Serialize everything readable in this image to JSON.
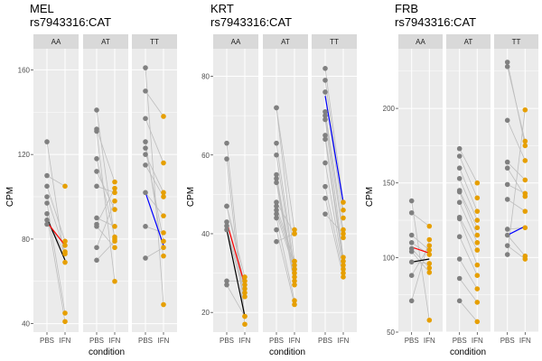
{
  "chart_data": [
    {
      "type": "line",
      "title": "MEL",
      "subtitle": "rs7943316:CAT",
      "xlabel": "condition",
      "ylabel": "CPM",
      "facets": [
        "AA",
        "AT",
        "TT"
      ],
      "x_categories": [
        "PBS",
        "IFN"
      ],
      "ylim": [
        36,
        170
      ],
      "yticks": [
        40,
        80,
        120,
        160
      ],
      "point_colors": {
        "PBS": "#808080",
        "IFN": "#E69F00"
      },
      "line_color": "#BEBEBE",
      "panels": [
        {
          "genotype": "AA",
          "pairs": [
            [
              126,
              69
            ],
            [
              110,
              105
            ],
            [
              105,
              79
            ],
            [
              100,
              74
            ],
            [
              97,
              45
            ],
            [
              92,
              41
            ],
            [
              89,
              73
            ],
            [
              87,
              77
            ]
          ],
          "mean_line": {
            "PBS": 90,
            "IFN": 70,
            "color": "#000000"
          },
          "highlight_line": {
            "PBS": 88,
            "IFN": 77,
            "color": "#FF0000"
          }
        },
        {
          "genotype": "AT",
          "pairs": [
            [
              141,
              80
            ],
            [
              132,
              107
            ],
            [
              131,
              60
            ],
            [
              118,
              81
            ],
            [
              112,
              94
            ],
            [
              105,
              102
            ],
            [
              90,
              86
            ],
            [
              87,
              104
            ],
            [
              86,
              76
            ],
            [
              76,
              98
            ],
            [
              70,
              79
            ]
          ],
          "mean_line": null,
          "highlight_line": null
        },
        {
          "genotype": "TT",
          "pairs": [
            [
              161,
              49
            ],
            [
              150,
              138
            ],
            [
              137,
              116
            ],
            [
              126,
              72
            ],
            [
              123,
              79
            ],
            [
              120,
              102
            ],
            [
              115,
              100
            ],
            [
              102,
              91
            ],
            [
              86,
              83
            ],
            [
              71,
              76
            ]
          ],
          "mean_line": null,
          "highlight_line": {
            "PBS": 102,
            "IFN": 77,
            "color": "#0000FF"
          }
        }
      ]
    },
    {
      "type": "line",
      "title": "KRT",
      "subtitle": "rs7943316:CAT",
      "xlabel": "condition",
      "ylabel": "CPM",
      "facets": [
        "AA",
        "AT",
        "TT"
      ],
      "x_categories": [
        "PBS",
        "IFN"
      ],
      "ylim": [
        15,
        87
      ],
      "yticks": [
        20,
        40,
        60,
        80
      ],
      "point_colors": {
        "PBS": "#808080",
        "IFN": "#E69F00"
      },
      "line_color": "#BEBEBE",
      "panels": [
        {
          "genotype": "AA",
          "pairs": [
            [
              63,
              19
            ],
            [
              59,
              17
            ],
            [
              47,
              29
            ],
            [
              47,
              27
            ],
            [
              43,
              26
            ],
            [
              42,
              25
            ],
            [
              41,
              24
            ],
            [
              28,
              28
            ],
            [
              27,
              19
            ]
          ],
          "mean_line": {
            "PBS": 41,
            "IFN": 19,
            "color": "#000000"
          },
          "highlight_line": {
            "PBS": 43,
            "IFN": 27,
            "color": "#FF0000"
          }
        },
        {
          "genotype": "AT",
          "pairs": [
            [
              72,
              41
            ],
            [
              72,
              33
            ],
            [
              63,
              31
            ],
            [
              60,
              30
            ],
            [
              55,
              29
            ],
            [
              54,
              28
            ],
            [
              53,
              27
            ],
            [
              48,
              40
            ],
            [
              47,
              33
            ],
            [
              46,
              32
            ],
            [
              45,
              31
            ],
            [
              44,
              23
            ],
            [
              41,
              22
            ],
            [
              38,
              40
            ]
          ],
          "mean_line": null,
          "highlight_line": null
        },
        {
          "genotype": "TT",
          "pairs": [
            [
              82,
              48
            ],
            [
              79,
              46
            ],
            [
              76,
              44
            ],
            [
              71,
              41
            ],
            [
              70,
              39
            ],
            [
              69,
              34
            ],
            [
              65,
              33
            ],
            [
              64,
              32
            ],
            [
              58,
              31
            ],
            [
              52,
              30
            ],
            [
              49,
              29
            ],
            [
              45,
              40
            ]
          ],
          "mean_line": null,
          "highlight_line": {
            "PBS": 75,
            "IFN": 48,
            "color": "#0000FF"
          }
        }
      ]
    },
    {
      "type": "line",
      "title": "FRB",
      "subtitle": "rs7943316:CAT",
      "xlabel": "condition",
      "ylabel": "CPM",
      "facets": [
        "AA",
        "AT",
        "TT"
      ],
      "x_categories": [
        "PBS",
        "IFN"
      ],
      "ylim": [
        50,
        240
      ],
      "yticks": [
        50,
        100,
        150,
        200
      ],
      "point_colors": {
        "PBS": "#808080",
        "IFN": "#E69F00"
      },
      "line_color": "#BEBEBE",
      "panels": [
        {
          "genotype": "AA",
          "pairs": [
            [
              138,
              58
            ],
            [
              130,
              121
            ],
            [
              115,
              105
            ],
            [
              110,
              102
            ],
            [
              106,
              93
            ],
            [
              104,
              90
            ],
            [
              97,
              96
            ],
            [
              88,
              108
            ],
            [
              71,
              112
            ]
          ],
          "mean_line": {
            "PBS": 97,
            "IFN": 99,
            "color": "#000000"
          },
          "highlight_line": {
            "PBS": 107,
            "IFN": 103,
            "color": "#FF0000"
          }
        },
        {
          "genotype": "AT",
          "pairs": [
            [
              173,
              150
            ],
            [
              168,
              140
            ],
            [
              160,
              131
            ],
            [
              153,
              125
            ],
            [
              145,
              120
            ],
            [
              144,
              115
            ],
            [
              137,
              110
            ],
            [
              127,
              105
            ],
            [
              126,
              95
            ],
            [
              114,
              88
            ],
            [
              99,
              79
            ],
            [
              86,
              70
            ],
            [
              71,
              57
            ]
          ],
          "mean_line": null,
          "highlight_line": null
        },
        {
          "genotype": "TT",
          "pairs": [
            [
              231,
              175
            ],
            [
              228,
              178
            ],
            [
              192,
              165
            ],
            [
              164,
              152
            ],
            [
              160,
              141
            ],
            [
              149,
              143
            ],
            [
              139,
              131
            ],
            [
              119,
              120
            ],
            [
              115,
              101
            ],
            [
              108,
              99
            ],
            [
              102,
              199
            ]
          ],
          "mean_line": null,
          "highlight_line": {
            "PBS": 115,
            "IFN": 121,
            "color": "#0000FF"
          }
        }
      ]
    }
  ]
}
